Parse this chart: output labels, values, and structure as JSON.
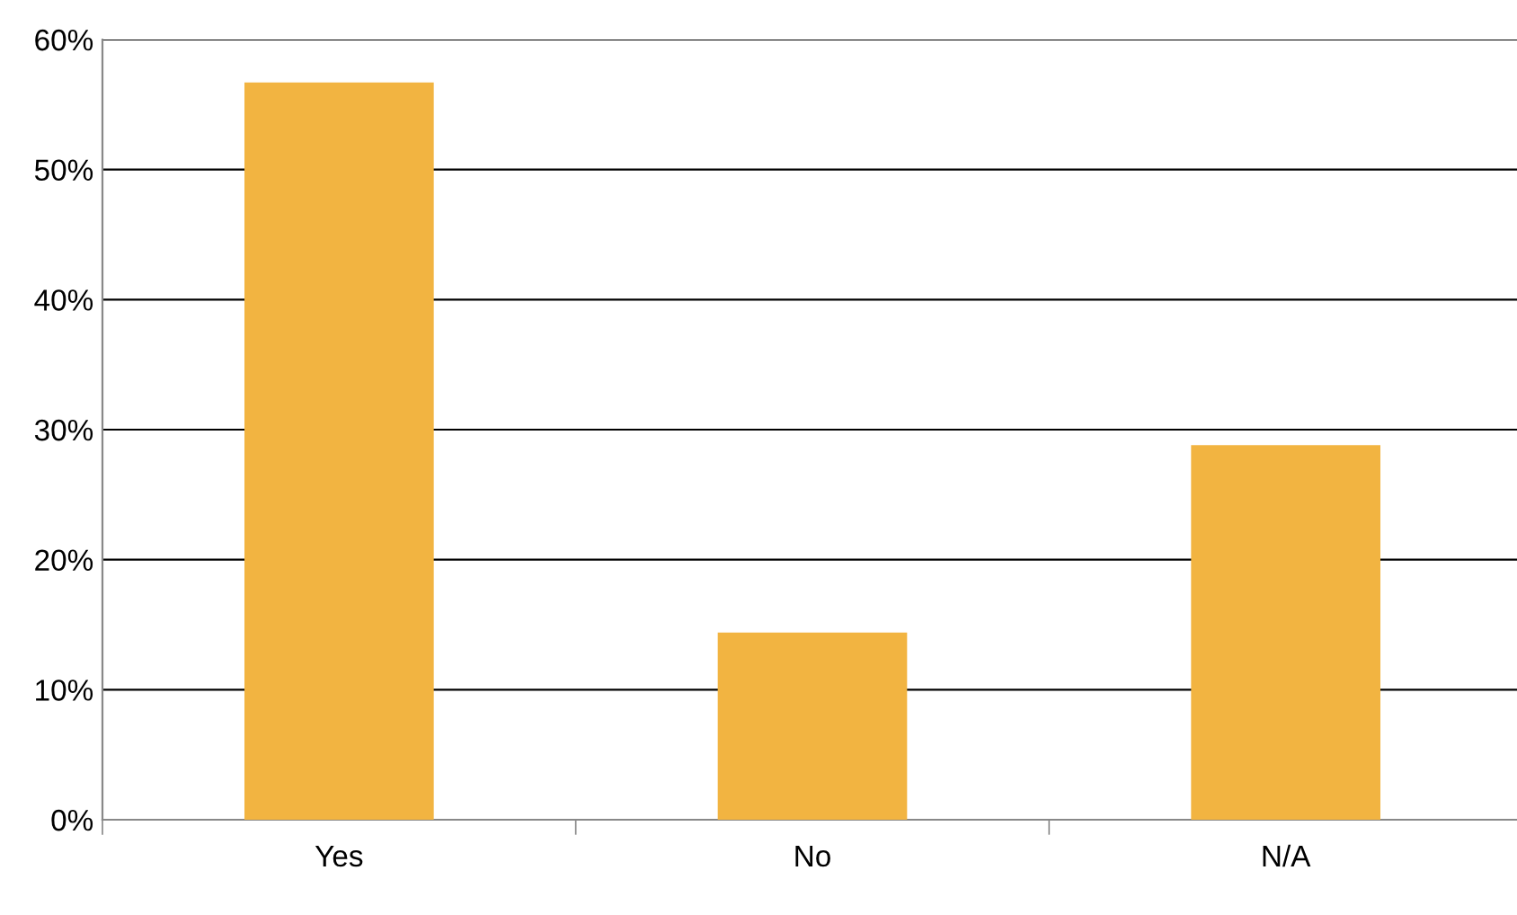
{
  "chart_data": {
    "type": "bar",
    "categories": [
      "Yes",
      "No",
      "N/A"
    ],
    "values": [
      56.7,
      14.4,
      28.8
    ],
    "color": "#f2b441",
    "ylim": [
      0,
      60
    ],
    "yticks": [
      {
        "value": 0,
        "label": "0%"
      },
      {
        "value": 10,
        "label": "10%"
      },
      {
        "value": 20,
        "label": "20%"
      },
      {
        "value": 30,
        "label": "30%"
      },
      {
        "value": 40,
        "label": "40%"
      },
      {
        "value": 50,
        "label": "50%"
      },
      {
        "value": 60,
        "label": "60%"
      }
    ],
    "grid": "y"
  }
}
